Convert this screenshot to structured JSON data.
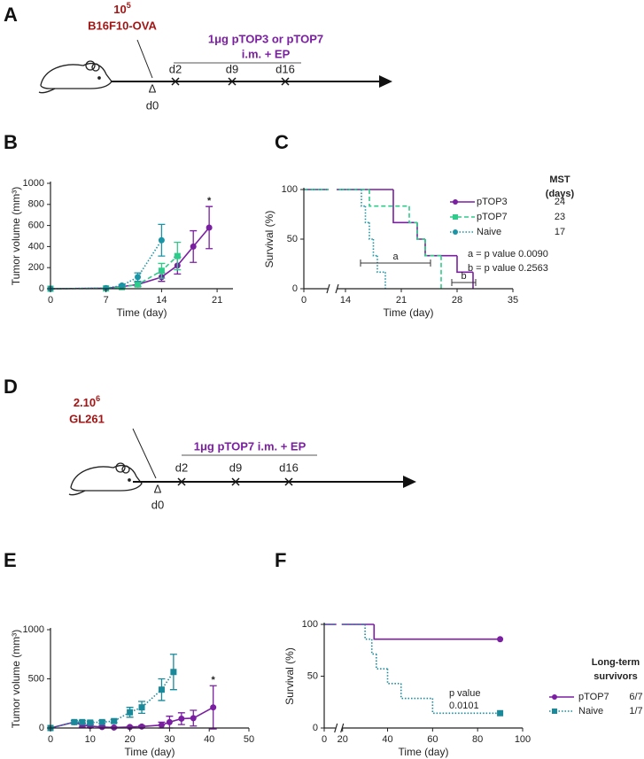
{
  "panel_labels": [
    "A",
    "B",
    "C",
    "D",
    "E",
    "F"
  ],
  "schematics": [
    {
      "dose": "10",
      "dose_exp": "5",
      "cells": "B16F10-OVA",
      "treatment": [
        "1μg pTOP3 or pTOP7",
        "i.m. + EP"
      ],
      "delta": "Δ",
      "day0": "d0",
      "days": [
        "d2",
        "d9",
        "d16"
      ]
    },
    {
      "dose": "2.10",
      "dose_exp": "6",
      "cells": "GL261",
      "treatment": [
        "1μg pTOP7 i.m. + EP"
      ],
      "delta": "Δ",
      "day0": "d0",
      "days": [
        "d2",
        "d9",
        "d16"
      ]
    }
  ],
  "chart_data": [
    {
      "type": "line",
      "ylabel": "Tumor volume (mm³)",
      "xlabel": "Time (day)",
      "xlim": [
        0,
        23
      ],
      "xticks": [
        0,
        7,
        14,
        21
      ],
      "ylim": [
        0,
        1000
      ],
      "yticks": [
        0,
        200,
        400,
        600,
        800,
        1000
      ],
      "annotations": [
        {
          "text": "*",
          "x": 20
        }
      ],
      "series": [
        {
          "name": "pTOP3",
          "color": "#7b1fa2",
          "dash": "solid",
          "marker": "circle",
          "x": [
            0,
            7,
            9,
            11,
            14,
            16,
            18,
            20
          ],
          "values": [
            0,
            5,
            20,
            40,
            110,
            220,
            400,
            580
          ],
          "errors": [
            0,
            0,
            5,
            20,
            40,
            80,
            150,
            200
          ]
        },
        {
          "name": "pTOP7",
          "color": "#2ecc8a",
          "dash": "dashed",
          "marker": "square",
          "x": [
            0,
            7,
            9,
            11,
            14,
            16
          ],
          "values": [
            0,
            3,
            15,
            40,
            170,
            310
          ],
          "errors": [
            0,
            0,
            5,
            15,
            70,
            130
          ]
        },
        {
          "name": "Naive",
          "color": "#1a95a5",
          "dash": "dotted",
          "marker": "circle",
          "x": [
            0,
            7,
            9,
            11,
            14
          ],
          "values": [
            0,
            5,
            30,
            110,
            460
          ],
          "errors": [
            0,
            0,
            10,
            40,
            150
          ]
        }
      ]
    },
    {
      "type": "survival",
      "ylabel": "Survival (%)",
      "xlabel": "Time (day)",
      "xlim": [
        0,
        35
      ],
      "xbreak": [
        3,
        13
      ],
      "xticks": [
        0,
        14,
        21,
        28,
        35
      ],
      "ylim": [
        0,
        100
      ],
      "yticks": [
        0,
        50,
        100
      ],
      "legend_title": [
        "MST",
        "(days)"
      ],
      "comparisons": [
        {
          "label": "a",
          "text": "a = p value 0.0090"
        },
        {
          "label": "b",
          "text": "b = p value 0.2563"
        }
      ],
      "series": [
        {
          "name": "pTOP3",
          "color": "#7b1fa2",
          "dash": "solid",
          "marker": "circle",
          "summary": "24",
          "x": [
            0,
            20,
            23,
            24,
            28,
            30
          ],
          "values": [
            100,
            66.7,
            50,
            33.3,
            16.7,
            0
          ]
        },
        {
          "name": "pTOP7",
          "color": "#2ecc8a",
          "dash": "dashed",
          "marker": "square",
          "summary": "23",
          "x": [
            0,
            17,
            22,
            23,
            24,
            26
          ],
          "values": [
            100,
            83.3,
            66.7,
            50,
            33.3,
            0
          ]
        },
        {
          "name": "Naive",
          "color": "#1a95a5",
          "dash": "dotted",
          "marker": "circle",
          "summary": "17",
          "x": [
            0,
            16,
            16.5,
            17,
            17.5,
            18,
            19
          ],
          "values": [
            100,
            83.3,
            66.7,
            50,
            33.3,
            16.7,
            0
          ]
        }
      ]
    },
    {
      "type": "line",
      "ylabel": "Tumor volume (mm³)",
      "xlabel": "Time (day)",
      "xlim": [
        0,
        50
      ],
      "xticks": [
        0,
        10,
        20,
        30,
        40,
        50
      ],
      "ylim": [
        0,
        1000
      ],
      "yticks": [
        0,
        500,
        1000
      ],
      "annotations": [
        {
          "text": "*",
          "x": 41
        }
      ],
      "series": [
        {
          "name": "pTOP7",
          "color": "#7b1fa2",
          "dash": "solid",
          "marker": "circle",
          "x": [
            0,
            6,
            8,
            10,
            13,
            16,
            20,
            23,
            28,
            30,
            33,
            36,
            41
          ],
          "values": [
            0,
            60,
            30,
            20,
            10,
            5,
            10,
            15,
            30,
            60,
            95,
            100,
            210
          ],
          "errors": [
            0,
            0,
            20,
            15,
            10,
            5,
            5,
            10,
            30,
            60,
            60,
            80,
            220
          ]
        },
        {
          "name": "Naive",
          "color": "#1a8a9a",
          "dash": "dotted",
          "marker": "square",
          "x": [
            0,
            6,
            8,
            10,
            13,
            16,
            20,
            23,
            28,
            31
          ],
          "values": [
            0,
            60,
            60,
            55,
            60,
            70,
            160,
            210,
            390,
            570
          ],
          "errors": [
            0,
            15,
            15,
            15,
            15,
            15,
            50,
            60,
            110,
            180
          ]
        }
      ]
    },
    {
      "type": "survival",
      "ylabel": "Survival (%)",
      "xlabel": "Time (day)",
      "xlim": [
        0,
        100
      ],
      "xbreak": [
        5,
        20
      ],
      "xticks": [
        0,
        20,
        40,
        60,
        80,
        100
      ],
      "ylim": [
        0,
        100
      ],
      "yticks": [
        0,
        50,
        100
      ],
      "end_markers": true,
      "legend_title": [
        "Long-term",
        "survivors"
      ],
      "note": [
        "p value",
        "0.0101"
      ],
      "series": [
        {
          "name": "pTOP7",
          "color": "#7b1fa2",
          "dash": "solid",
          "marker": "circle",
          "summary": "6/7",
          "x": [
            0,
            34,
            90
          ],
          "values": [
            100,
            85.7,
            85.7
          ]
        },
        {
          "name": "Naive",
          "color": "#1a8a9a",
          "dash": "dotted",
          "marker": "square",
          "summary": "1/7",
          "x": [
            0,
            30,
            33,
            35,
            40,
            46,
            60,
            90
          ],
          "values": [
            100,
            85.7,
            71.4,
            57.1,
            42.9,
            28.6,
            14.3,
            14.3
          ]
        }
      ]
    }
  ]
}
